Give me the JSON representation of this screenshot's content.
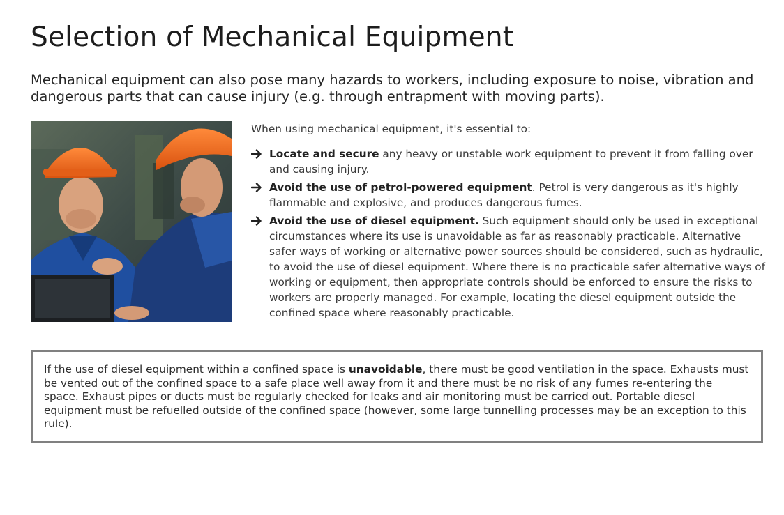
{
  "title": "Selection of Mechanical Equipment",
  "intro": "Mechanical equipment can also pose many hazards to workers, including exposure to noise, vibration and dangerous parts that can cause injury (e.g. through entrapment with moving parts).",
  "image": {
    "icon": "workers-with-hardhats-photo"
  },
  "content": {
    "lead": "When using mechanical equipment, it's essential to:",
    "bullets": [
      {
        "bold": "Locate and secure",
        "text": " any heavy or unstable work equipment to prevent it from falling over and causing injury."
      },
      {
        "bold": "Avoid the use of petrol-powered equipment",
        "text": ". Petrol is very dangerous as it's highly flammable and explosive, and produces dangerous fumes."
      },
      {
        "bold": "Avoid the use of diesel equipment.",
        "text": " Such equipment should only be used in exceptional circumstances where its use is unavoidable as far as reasonably practicable. Alternative safer ways of working or alternative power sources should be considered, such as hydraulic, to avoid the use of diesel equipment. Where there is no practicable safer alternative ways of working or equipment, then appropriate controls should be enforced to ensure the risks to workers are properly managed. For example, locating the diesel equipment outside the confined space where reasonably practicable."
      }
    ]
  },
  "note": {
    "before": "If the use of diesel equipment within a confined space is ",
    "bold": "unavoidable",
    "after": ", there must be good ventilation in the space. Exhausts must be vented out of the confined space to a safe place well away from it and there must be no risk of any fumes re-entering the space. Exhaust pipes or ducts must be regularly checked for leaks and air monitoring must be carried out. Portable diesel equipment must be refuelled outside of the confined space (however, some large tunnelling processes may be an exception to this rule)."
  },
  "colors": {
    "hardhat": "#f26a1b",
    "shirt_blue": "#1f4fa0",
    "border": "#808080"
  }
}
